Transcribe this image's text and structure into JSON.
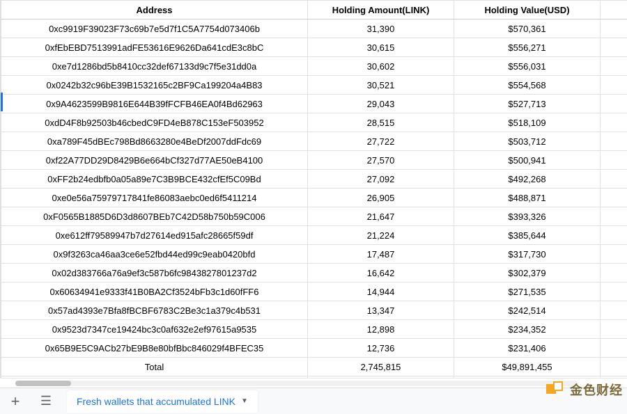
{
  "headers": {
    "address": "Address",
    "amount": "Holding Amount(LINK)",
    "value": "Holding Value(USD)"
  },
  "rows": [
    {
      "address": "0xc9919F39023F73c69b7e5d7f1C5A7754d073406b",
      "amount": "31,390",
      "value": "$570,361"
    },
    {
      "address": "0xfEbEBD7513991adFE53616E9626Da641cdE3c8bC",
      "amount": "30,615",
      "value": "$556,271"
    },
    {
      "address": "0xe7d1286bd5b8410cc32def67133d9c7f5e31dd0a",
      "amount": "30,602",
      "value": "$556,031"
    },
    {
      "address": "0x0242b32c96bE39B1532165c2BF9Ca199204a4B83",
      "amount": "30,521",
      "value": "$554,568"
    },
    {
      "address": "0x9A4623599B9816E644B39fFCFB46EA0f4Bd62963",
      "amount": "29,043",
      "value": "$527,713"
    },
    {
      "address": "0xdD4F8b92503b46cbedC9FD4eB878C153eF503952",
      "amount": "28,515",
      "value": "$518,109"
    },
    {
      "address": "0xa789F45dBEc798Bd8663280e4BeDf2007ddFdc69",
      "amount": "27,722",
      "value": "$503,712"
    },
    {
      "address": "0xf22A77DD29D8429B6e664bCf327d77AE50eB4100",
      "amount": "27,570",
      "value": "$500,941"
    },
    {
      "address": "0xFF2b24edbfb0a05a89e7C3B9BCE432cfEf5C09Bd",
      "amount": "27,092",
      "value": "$492,268"
    },
    {
      "address": "0xe0e56a75979717841fe86083aebc0ed6f5411214",
      "amount": "26,905",
      "value": "$488,871"
    },
    {
      "address": "0xF0565B1885D6D3d8607BEb7C42D58b750b59C006",
      "amount": "21,647",
      "value": "$393,326"
    },
    {
      "address": "0xe612ff79589947b7d27614ed915afc28665f59df",
      "amount": "21,224",
      "value": "$385,644"
    },
    {
      "address": "0x9f3263ca46aa3ce6e52fbd44ed99c9eab0420bfd",
      "amount": "17,487",
      "value": "$317,730"
    },
    {
      "address": "0x02d383766a76a9ef3c587b6fc9843827801237d2",
      "amount": "16,642",
      "value": "$302,379"
    },
    {
      "address": "0x60634941e9333f41B0BA2Cf3524bFb3c1d60fFF6",
      "amount": "14,944",
      "value": "$271,535"
    },
    {
      "address": "0x57ad4393e7Bfa8fBCBF6783C2Be3c1a379c4b531",
      "amount": "13,347",
      "value": "$242,514"
    },
    {
      "address": "0x9523d7347ce19424bc3c0af632e2ef97615a9535",
      "amount": "12,898",
      "value": "$234,352"
    },
    {
      "address": "0x65B9E5C9ACb27bE9B8e80bfBbc846029f4BFEC35",
      "amount": "12,736",
      "value": "$231,406"
    }
  ],
  "total": {
    "label": "Total",
    "amount": "2,745,815",
    "value": "$49,891,455"
  },
  "tab": {
    "label": "Fresh wallets that accumulated LINK"
  },
  "watermark": {
    "text": "金色财经"
  },
  "colors": {
    "grid_border": "#e0e0e0",
    "tab_active_text": "#1a73e8",
    "tabbar_bg": "#f8f9fa",
    "watermark_accent": "#f5a623"
  }
}
